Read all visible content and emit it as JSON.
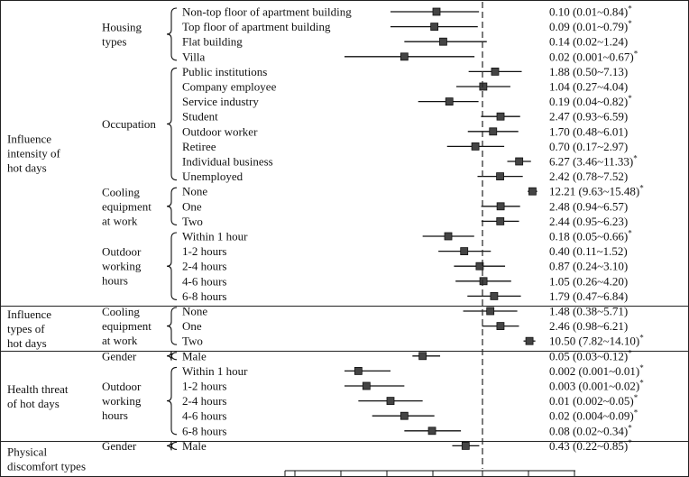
{
  "chart_data": {
    "type": "forest",
    "x_scale": "log",
    "reference_value": 1,
    "sections": [
      {
        "label": [
          "Influence",
          "intensity of",
          "hot days"
        ],
        "groups": [
          {
            "label": [
              "Housing",
              "types"
            ],
            "rows": [
              {
                "label": "Non-top floor of apartment building",
                "or": 0.1,
                "lo": 0.01,
                "hi": 0.84,
                "ci_text": "0.10 (0.01~0.84)",
                "sig": true
              },
              {
                "label": "Top floor of apartment building",
                "or": 0.09,
                "lo": 0.01,
                "hi": 0.79,
                "ci_text": "0.09 (0.01~0.79)",
                "sig": true
              },
              {
                "label": "Flat building",
                "or": 0.14,
                "lo": 0.02,
                "hi": 1.24,
                "ci_text": "0.14 (0.02~1.24)",
                "sig": false
              },
              {
                "label": "Villa",
                "or": 0.02,
                "lo": 0.001,
                "hi": 0.67,
                "ci_text": "0.02 (0.001~0.67)",
                "sig": true
              }
            ]
          },
          {
            "label": [
              "Occupation"
            ],
            "rows": [
              {
                "label": "Public institutions",
                "or": 1.88,
                "lo": 0.5,
                "hi": 7.13,
                "ci_text": "1.88 (0.50~7.13)",
                "sig": false
              },
              {
                "label": "Company employee",
                "or": 1.04,
                "lo": 0.27,
                "hi": 4.04,
                "ci_text": "1.04 (0.27~4.04)",
                "sig": false
              },
              {
                "label": "Service industry",
                "or": 0.19,
                "lo": 0.04,
                "hi": 0.82,
                "ci_text": "0.19 (0.04~0.82)",
                "sig": true
              },
              {
                "label": "Student",
                "or": 2.47,
                "lo": 0.93,
                "hi": 6.59,
                "ci_text": "2.47 (0.93~6.59)",
                "sig": false
              },
              {
                "label": "Outdoor worker",
                "or": 1.7,
                "lo": 0.48,
                "hi": 6.01,
                "ci_text": "1.70 (0.48~6.01)",
                "sig": false
              },
              {
                "label": "Retiree",
                "or": 0.7,
                "lo": 0.17,
                "hi": 2.97,
                "ci_text": "0.70 (0.17~2.97)",
                "sig": false
              },
              {
                "label": "Individual business",
                "or": 6.27,
                "lo": 3.46,
                "hi": 11.33,
                "ci_text": "6.27 (3.46~11.33)",
                "sig": true
              },
              {
                "label": "Unemployed",
                "or": 2.42,
                "lo": 0.78,
                "hi": 7.52,
                "ci_text": "2.42 (0.78~7.52)",
                "sig": false
              }
            ]
          },
          {
            "label": [
              "Cooling",
              "equipment",
              "at work"
            ],
            "rows": [
              {
                "label": "None",
                "or": 12.21,
                "lo": 9.63,
                "hi": 15.48,
                "ci_text": "12.21 (9.63~15.48)",
                "sig": true
              },
              {
                "label": "One",
                "or": 2.48,
                "lo": 0.94,
                "hi": 6.57,
                "ci_text": "2.48 (0.94~6.57)",
                "sig": false
              },
              {
                "label": "Two",
                "or": 2.44,
                "lo": 0.95,
                "hi": 6.23,
                "ci_text": "2.44 (0.95~6.23)",
                "sig": false
              }
            ]
          },
          {
            "label": [
              "Outdoor",
              "working",
              "hours"
            ],
            "rows": [
              {
                "label": "Within 1 hour",
                "or": 0.18,
                "lo": 0.05,
                "hi": 0.66,
                "ci_text": "0.18 (0.05~0.66)",
                "sig": true
              },
              {
                "label": "1-2 hours",
                "or": 0.4,
                "lo": 0.11,
                "hi": 1.52,
                "ci_text": "0.40 (0.11~1.52)",
                "sig": false
              },
              {
                "label": "2-4 hours",
                "or": 0.87,
                "lo": 0.24,
                "hi": 3.1,
                "ci_text": "0.87 (0.24~3.10)",
                "sig": false
              },
              {
                "label": "4-6 hours",
                "or": 1.05,
                "lo": 0.26,
                "hi": 4.2,
                "ci_text": "1.05 (0.26~4.20)",
                "sig": false
              },
              {
                "label": "6-8 hours",
                "or": 1.79,
                "lo": 0.47,
                "hi": 6.84,
                "ci_text": "1.79 (0.47~6.84)",
                "sig": false
              }
            ]
          }
        ]
      },
      {
        "label": [
          "Influence",
          "types of",
          "hot days"
        ],
        "groups": [
          {
            "label": [
              "Cooling",
              "equipment",
              "at work"
            ],
            "rows": [
              {
                "label": "None",
                "or": 1.48,
                "lo": 0.38,
                "hi": 5.71,
                "ci_text": "1.48 (0.38~5.71)",
                "sig": false
              },
              {
                "label": "One",
                "or": 2.46,
                "lo": 0.98,
                "hi": 6.21,
                "ci_text": "2.46 (0.98~6.21)",
                "sig": false
              },
              {
                "label": "Two",
                "or": 10.5,
                "lo": 7.82,
                "hi": 14.1,
                "ci_text": "10.50 (7.82~14.10)",
                "sig": true
              }
            ]
          }
        ]
      },
      {
        "label": [
          "Health threat",
          "of hot days"
        ],
        "groups": [
          {
            "label": [
              "Gender"
            ],
            "rows": [
              {
                "label": "Male",
                "or": 0.05,
                "lo": 0.03,
                "hi": 0.12,
                "ci_text": "0.05 (0.03~0.12)",
                "sig": true
              }
            ]
          },
          {
            "label": [
              "Outdoor",
              "working",
              "hours"
            ],
            "rows": [
              {
                "label": "Within 1 hour",
                "or": 0.002,
                "lo": 0.001,
                "hi": 0.01,
                "ci_text": "0.002 (0.001~0.01)",
                "sig": true
              },
              {
                "label": "1-2 hours",
                "or": 0.003,
                "lo": 0.001,
                "hi": 0.02,
                "ci_text": "0.003 (0.001~0.02)",
                "sig": true
              },
              {
                "label": "2-4 hours",
                "or": 0.01,
                "lo": 0.002,
                "hi": 0.05,
                "ci_text": "0.01 (0.002~0.05)",
                "sig": true
              },
              {
                "label": "4-6 hours",
                "or": 0.02,
                "lo": 0.004,
                "hi": 0.09,
                "ci_text": "0.02 (0.004~0.09)",
                "sig": true
              },
              {
                "label": "6-8 hours",
                "or": 0.08,
                "lo": 0.02,
                "hi": 0.34,
                "ci_text": "0.08 (0.02~0.34)",
                "sig": true
              }
            ]
          }
        ]
      },
      {
        "label": [
          "Physical",
          "discomfort types"
        ],
        "groups": [
          {
            "label": [
              "Gender"
            ],
            "rows": [
              {
                "label": "Male",
                "or": 0.43,
                "lo": 0.22,
                "hi": 0.85,
                "ci_text": "0.43 (0.22~0.85)",
                "sig": true
              }
            ]
          }
        ]
      }
    ],
    "significance_marker": "*",
    "grid": false,
    "legend": "none",
    "colors": {
      "marker": "#444444",
      "line": "#111111",
      "reference_line": "#222222"
    }
  }
}
